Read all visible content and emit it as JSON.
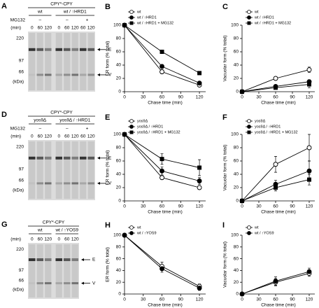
{
  "gels": [
    {
      "letter": "A",
      "title": "CPY*-CPY",
      "treatment_label": "MG132",
      "time_label": "(min)",
      "groups": [
        {
          "label": "wt",
          "sets": [
            {
              "treatment": "–",
              "times": [
                "0",
                "60",
                "120"
              ]
            }
          ]
        },
        {
          "label": "wt / ↑HRD1",
          "sets": [
            {
              "treatment": "–",
              "times": [
                "0",
                "60",
                "120"
              ]
            },
            {
              "treatment": "+",
              "times": [
                "60",
                "120"
              ]
            }
          ]
        }
      ],
      "mw": [
        "220",
        "97",
        "66"
      ],
      "mw_unit": "(kDa)",
      "bands": [
        "E",
        "V"
      ]
    },
    {
      "letter": "D",
      "title": "CPY*-CPY",
      "treatment_label": "MG132",
      "time_label": "(min)",
      "groups": [
        {
          "label": "yos9Δ",
          "sets": [
            {
              "treatment": "–",
              "times": [
                "0",
                "60",
                "120"
              ]
            }
          ]
        },
        {
          "label": "yos9Δ / ↑HRD1",
          "sets": [
            {
              "treatment": "–",
              "times": [
                "0",
                "60",
                "120"
              ]
            },
            {
              "treatment": "+",
              "times": [
                "60",
                "120"
              ]
            }
          ]
        }
      ],
      "mw": [
        "220",
        "97",
        "66"
      ],
      "mw_unit": "(kDa)",
      "bands": [
        "E",
        "V"
      ]
    },
    {
      "letter": "G",
      "title": "CPY*-CPY",
      "time_label": "(min)",
      "groups": [
        {
          "label": "wt",
          "sets": [
            {
              "times": [
                "0",
                "60",
                "120"
              ]
            }
          ]
        },
        {
          "label": "wt / ↑YOS9",
          "sets": [
            {
              "times": [
                "0",
                "60",
                "120"
              ]
            }
          ]
        }
      ],
      "mw": [
        "220",
        "97",
        "66"
      ],
      "mw_unit": "(kDa)",
      "bands": [
        "E",
        "V"
      ]
    }
  ],
  "chart_data": [
    {
      "type": "line",
      "letter": "B",
      "ylabel": "ER form (% total)",
      "xlabel": "Chase time (min)",
      "x": [
        0,
        60,
        120
      ],
      "xlim": [
        0,
        130
      ],
      "xticks": [
        0,
        30,
        60,
        90,
        120
      ],
      "ylim": [
        0,
        100
      ],
      "yticks": [
        0,
        20,
        40,
        60,
        80,
        100
      ],
      "legend": "upper-left",
      "series": [
        {
          "name": "wt",
          "marker": "open-circle",
          "color": "#000000",
          "values": [
            100,
            30,
            10
          ],
          "errors": [
            0,
            3,
            2
          ]
        },
        {
          "name": "wt / ↑HRD1",
          "marker": "circle",
          "color": "#000000",
          "values": [
            100,
            38,
            13
          ],
          "errors": [
            0,
            3,
            2
          ]
        },
        {
          "name": "wt / ↑HRD1 + MG132",
          "marker": "square",
          "color": "#000000",
          "values": [
            100,
            60,
            28
          ],
          "errors": [
            0,
            2,
            2
          ]
        }
      ]
    },
    {
      "type": "line",
      "letter": "C",
      "ylabel": "Vacuolar form (% total)",
      "xlabel": "Chase time (min)",
      "x": [
        0,
        60,
        120
      ],
      "xlim": [
        0,
        130
      ],
      "xticks": [
        0,
        30,
        60,
        90,
        120
      ],
      "ylim": [
        0,
        100
      ],
      "yticks": [
        0,
        20,
        40,
        60,
        80,
        100
      ],
      "legend": "upper-left",
      "series": [
        {
          "name": "wt",
          "marker": "open-circle",
          "color": "#000000",
          "values": [
            0,
            20,
            33
          ],
          "errors": [
            0,
            2,
            4
          ]
        },
        {
          "name": "wt / ↑HRD1",
          "marker": "circle",
          "color": "#000000",
          "values": [
            0,
            8,
            15
          ],
          "errors": [
            0,
            2,
            3
          ]
        },
        {
          "name": "wt / ↑HRD1 + MG132",
          "marker": "square",
          "color": "#000000",
          "values": [
            0,
            6,
            11
          ],
          "errors": [
            0,
            2,
            5
          ]
        }
      ]
    },
    {
      "type": "line",
      "letter": "E",
      "ylabel": "ER form (% total)",
      "xlabel": "Chase time (min)",
      "x": [
        0,
        60,
        120
      ],
      "xlim": [
        0,
        130
      ],
      "xticks": [
        0,
        30,
        60,
        90,
        120
      ],
      "ylim": [
        0,
        100
      ],
      "yticks": [
        0,
        20,
        40,
        60,
        80,
        100
      ],
      "legend": "upper-left",
      "series": [
        {
          "name": "yos9Δ",
          "marker": "open-circle",
          "color": "#000000",
          "values": [
            100,
            35,
            20
          ],
          "errors": [
            0,
            3,
            2
          ]
        },
        {
          "name": "yos9Δ / ↑HRD1",
          "marker": "circle",
          "color": "#000000",
          "values": [
            100,
            45,
            30
          ],
          "errors": [
            0,
            6,
            5
          ]
        },
        {
          "name": "yos9Δ / ↑HRD1 + MG132",
          "marker": "square",
          "color": "#000000",
          "values": [
            100,
            63,
            50
          ],
          "errors": [
            0,
            8,
            12
          ]
        }
      ]
    },
    {
      "type": "line",
      "letter": "F",
      "ylabel": "Vacuolar form (% total)",
      "xlabel": "Chase time (min)",
      "x": [
        0,
        60,
        120
      ],
      "xlim": [
        0,
        130
      ],
      "xticks": [
        0,
        30,
        60,
        90,
        120
      ],
      "ylim": [
        0,
        100
      ],
      "yticks": [
        0,
        20,
        40,
        60,
        80,
        100
      ],
      "legend": "upper-left",
      "series": [
        {
          "name": "yos9Δ",
          "marker": "open-circle",
          "color": "#000000",
          "values": [
            0,
            55,
            80
          ],
          "errors": [
            0,
            12,
            20
          ]
        },
        {
          "name": "yos9Δ / ↑HRD1",
          "marker": "circle",
          "color": "#000000",
          "values": [
            0,
            25,
            45
          ],
          "errors": [
            0,
            6,
            15
          ]
        },
        {
          "name": "yos9Δ / ↑HRD1 + MG132",
          "marker": "square",
          "color": "#000000",
          "values": [
            0,
            20,
            32
          ],
          "errors": [
            0,
            5,
            8
          ]
        }
      ]
    },
    {
      "type": "line",
      "letter": "H",
      "ylabel": "ER form (% total)",
      "xlabel": "Chase time (min)",
      "x": [
        0,
        60,
        120
      ],
      "xlim": [
        0,
        130
      ],
      "xticks": [
        0,
        30,
        60,
        90,
        120
      ],
      "ylim": [
        0,
        100
      ],
      "yticks": [
        0,
        20,
        40,
        60,
        80,
        100
      ],
      "legend": "upper-left",
      "series": [
        {
          "name": "wt",
          "marker": "open-circle",
          "color": "#000000",
          "values": [
            100,
            47,
            13
          ],
          "errors": [
            0,
            7,
            4
          ]
        },
        {
          "name": "wt / ↑YOS9",
          "marker": "circle",
          "color": "#000000",
          "values": [
            100,
            43,
            10
          ],
          "errors": [
            0,
            6,
            4
          ]
        }
      ]
    },
    {
      "type": "line",
      "letter": "I",
      "ylabel": "Vacuolar form (% total)",
      "xlabel": "Chase time (min)",
      "x": [
        0,
        60,
        120
      ],
      "xlim": [
        0,
        130
      ],
      "xticks": [
        0,
        30,
        60,
        90,
        120
      ],
      "ylim": [
        0,
        100
      ],
      "yticks": [
        0,
        20,
        40,
        60,
        80,
        100
      ],
      "legend": "upper-left",
      "series": [
        {
          "name": "wt",
          "marker": "open-circle",
          "color": "#000000",
          "values": [
            0,
            20,
            35
          ],
          "errors": [
            0,
            6,
            5
          ]
        },
        {
          "name": "wt / ↑YOS9",
          "marker": "circle",
          "color": "#000000",
          "values": [
            0,
            22,
            38
          ],
          "errors": [
            0,
            7,
            6
          ]
        }
      ]
    }
  ]
}
